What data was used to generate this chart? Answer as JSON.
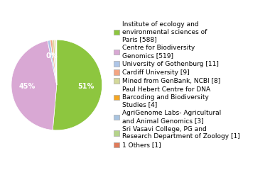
{
  "labels": [
    "Institute of ecology and\nenvironmental sciences of\nParis [588]",
    "Centre for Biodiversity\nGenomics [519]",
    "University of Gothenburg [11]",
    "Cardiff University [9]",
    "Mined from GenBank, NCBI [8]",
    "Paul Hebert Centre for DNA\nBarcoding and Biodiversity\nStudies [4]",
    "AgriGenome Labs- Agricultural\nand Animal Genomics [3]",
    "Sri Vasavi College, PG and\nResearch Department of Zoology [1]",
    "1 Others [1]"
  ],
  "values": [
    588,
    519,
    11,
    9,
    8,
    4,
    3,
    1,
    1
  ],
  "colors": [
    "#8dc63f",
    "#d9a8d4",
    "#aec6e8",
    "#f4a582",
    "#d4d99a",
    "#f5a623",
    "#a8c4e0",
    "#b5d48a",
    "#e07b5a"
  ],
  "legend_fontsize": 6.5,
  "figsize": [
    3.8,
    2.4
  ],
  "dpi": 100
}
